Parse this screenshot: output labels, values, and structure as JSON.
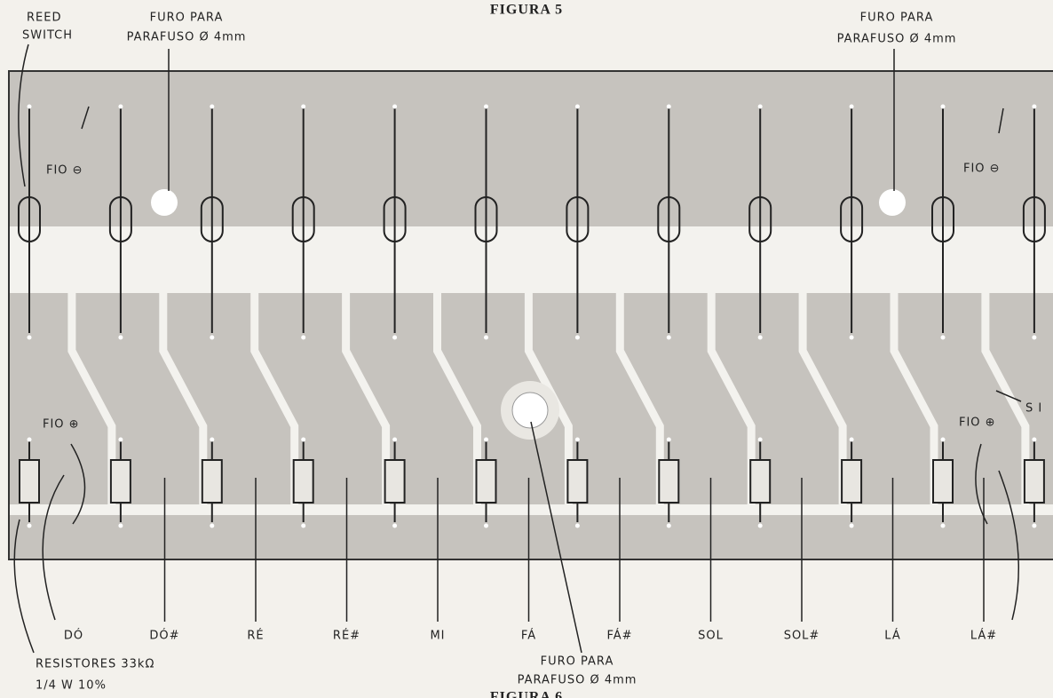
{
  "figure_top": "FIGURA 5",
  "reed_switch": [
    "REED",
    "SWITCH"
  ],
  "hole_top_left": [
    "FURO PARA",
    "PARAFUSO Ø 4mm"
  ],
  "hole_top_right": [
    "FURO PARA",
    "PARAFUSO Ø 4mm"
  ],
  "wire_negative_left": "FIO ⊖",
  "wire_negative_right": "FIO ⊖",
  "wire_positive_left": "FIO ⊕",
  "wire_positive_right": "FIO ⊕",
  "si_label": "S I",
  "notes": [
    "DÓ",
    "DÓ#",
    "RÉ",
    "RÉ#",
    "MI",
    "FÁ",
    "FÁ#",
    "SOL",
    "SOL#",
    "LÁ",
    "LÁ#"
  ],
  "hole_bottom": [
    "FURO PARA",
    "PARAFUSO Ø 4mm"
  ],
  "resistors": [
    "RESISTORES 33kΩ",
    "1/4 W    10%"
  ],
  "figure_bottom": "FIGURA 6"
}
